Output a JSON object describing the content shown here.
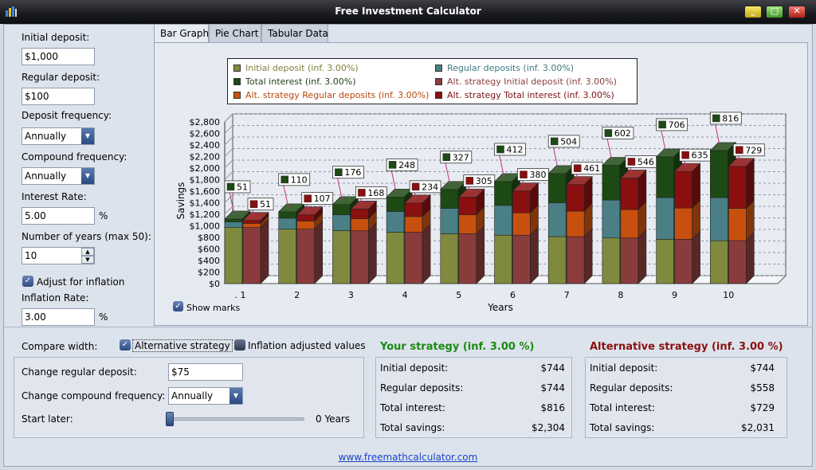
{
  "window": {
    "title": "Free Investment Calculator"
  },
  "inputs": {
    "initial_deposit_label": "Initial deposit:",
    "initial_deposit": "$1,000",
    "regular_deposit_label": "Regular deposit:",
    "regular_deposit": "$100",
    "deposit_frequency_label": "Deposit frequency:",
    "deposit_frequency": "Annually",
    "compound_frequency_label": "Compound frequency:",
    "compound_frequency": "Annually",
    "interest_rate_label": "Interest Rate:",
    "interest_rate": "5.00",
    "interest_rate_unit": "%",
    "years_label": "Number of years (max 50):",
    "years": "10",
    "adjust_inflation_label": "Adjust for inflation",
    "adjust_inflation_checked": true,
    "inflation_rate_label": "Inflation Rate:",
    "inflation_rate": "3.00",
    "inflation_rate_unit": "%"
  },
  "tabs": [
    "Bar Graph",
    "Pie Chart",
    "Tabular Data"
  ],
  "active_tab": 0,
  "show_marks_label": "Show marks",
  "chart_data": {
    "type": "bar",
    "stacked": true,
    "three_d": true,
    "xlabel": "Years",
    "ylabel": "Savings",
    "ylim": [
      0,
      2800
    ],
    "y_ticks": [
      "$0",
      "$200",
      "$400",
      "$600",
      "$800",
      "$1,000",
      "$1,200",
      "$1,400",
      "$1,600",
      "$1,800",
      "$2,000",
      "$2,200",
      "$2,400",
      "$2,600",
      "$2,800"
    ],
    "categories": [
      "1",
      "2",
      "3",
      "4",
      "5",
      "6",
      "7",
      "8",
      "9",
      "10"
    ],
    "x_origin_label": ".",
    "legend_position": "top",
    "series": [
      {
        "name": "Initial deposit (inf. 3.00%)",
        "stack": "your",
        "color": "#7f8a3e",
        "text_color": "#808040",
        "values": [
          970,
          943,
          915,
          889,
          863,
          838,
          813,
          790,
          767,
          744
        ]
      },
      {
        "name": "Regular deposits (inf. 3.00%)",
        "stack": "your",
        "color": "#4a7f85",
        "text_color": "#3f7a80",
        "values": [
          97,
          190,
          278,
          361,
          441,
          516,
          588,
          656,
          721,
          744
        ]
      },
      {
        "name": "Total interest (inf. 3.00%)",
        "stack": "your",
        "color": "#1d4a14",
        "text_color": "#1e3f14",
        "values": [
          51,
          110,
          176,
          248,
          327,
          412,
          504,
          602,
          706,
          816
        ]
      },
      {
        "name": "Alt. strategy Initial deposit (inf. 3.00%)",
        "stack": "alt",
        "color": "#8a3c3c",
        "text_color": "#8a4040",
        "values": [
          970,
          943,
          915,
          889,
          863,
          838,
          813,
          790,
          767,
          744
        ]
      },
      {
        "name": "Alt. strategy Regular deposits (inf. 3.00%)",
        "stack": "alt",
        "color": "#c8500e",
        "text_color": "#b8480e",
        "values": [
          73,
          141,
          208,
          272,
          330,
          387,
          441,
          492,
          541,
          558
        ]
      },
      {
        "name": "Alt. strategy Total interest (inf. 3.00%)",
        "stack": "alt",
        "color": "#8a0f0f",
        "text_color": "#7a1010",
        "values": [
          51,
          107,
          168,
          234,
          305,
          380,
          461,
          546,
          635,
          729
        ]
      }
    ],
    "marks": {
      "your": [
        "51",
        "110",
        "176",
        "248",
        "327",
        "412",
        "504",
        "602",
        "706",
        "816"
      ],
      "alt": [
        "51",
        "107",
        "168",
        "234",
        "305",
        "380",
        "461",
        "546",
        "635",
        "729"
      ]
    },
    "grid": true
  },
  "compare": {
    "label": "Compare width:",
    "alt_strategy_label": "Alternative strategy",
    "alt_strategy_checked": true,
    "inflation_adjusted_label": "Inflation adjusted values",
    "inflation_adjusted_checked": false,
    "change_regular_deposit_label": "Change regular deposit:",
    "change_regular_deposit": "$75",
    "change_compound_label": "Change compound frequency:",
    "change_compound": "Annually",
    "start_later_label": "Start later:",
    "start_later_value": "0 Years",
    "start_later_fraction": 0
  },
  "your_strategy": {
    "title": "Your strategy (inf. 3.00 %)",
    "title_color": "#1a8a10",
    "rows": [
      {
        "label": "Initial deposit:",
        "value": "$744"
      },
      {
        "label": "Regular deposits:",
        "value": "$744"
      },
      {
        "label": "Total interest:",
        "value": "$816"
      },
      {
        "label": "Total savings:",
        "value": "$2,304"
      }
    ]
  },
  "alt_strategy": {
    "title": "Alternative strategy (inf. 3.00 %)",
    "title_color": "#8a1010",
    "rows": [
      {
        "label": "Initial deposit:",
        "value": "$744"
      },
      {
        "label": "Regular deposits:",
        "value": "$558"
      },
      {
        "label": "Total interest:",
        "value": "$729"
      },
      {
        "label": "Total savings:",
        "value": "$2,031"
      }
    ]
  },
  "footer_link": "www.freemathcalculator.com"
}
